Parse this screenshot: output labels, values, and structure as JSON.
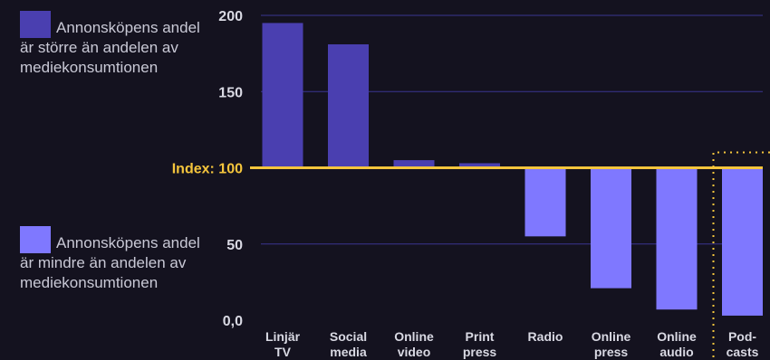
{
  "legend": {
    "above": {
      "label": "Annonsköpens andel är större än andelen av mediekonsumtionen",
      "color": "#4a3fb0"
    },
    "below": {
      "label": "Annonsköpens andel är mindre än andelen av mediekonsumtionen",
      "color": "#7f78ff"
    }
  },
  "index_label": "Index: 100",
  "colors": {
    "background": "#14121f",
    "index_line": "#f5c53c",
    "grid": "#3a3590",
    "tick_text": "#d9d9e3"
  },
  "chart_data": {
    "type": "bar",
    "baseline": 100,
    "ylim": [
      0,
      200
    ],
    "ytick_labels": [
      {
        "value": 200,
        "label": "200"
      },
      {
        "value": 150,
        "label": "150"
      },
      {
        "value": 50,
        "label": "50"
      },
      {
        "value": 0,
        "label": "0,0"
      }
    ],
    "categories": [
      [
        "Linjär",
        "TV"
      ],
      [
        "Social",
        "media"
      ],
      [
        "Online",
        "video"
      ],
      [
        "Print",
        "press"
      ],
      [
        "Radio"
      ],
      [
        "Online",
        "press"
      ],
      [
        "Online",
        "audio"
      ],
      [
        "Pod-",
        "casts"
      ]
    ],
    "values": [
      195,
      181,
      105,
      103,
      55,
      21,
      7,
      3
    ],
    "highlight_index": 7
  }
}
